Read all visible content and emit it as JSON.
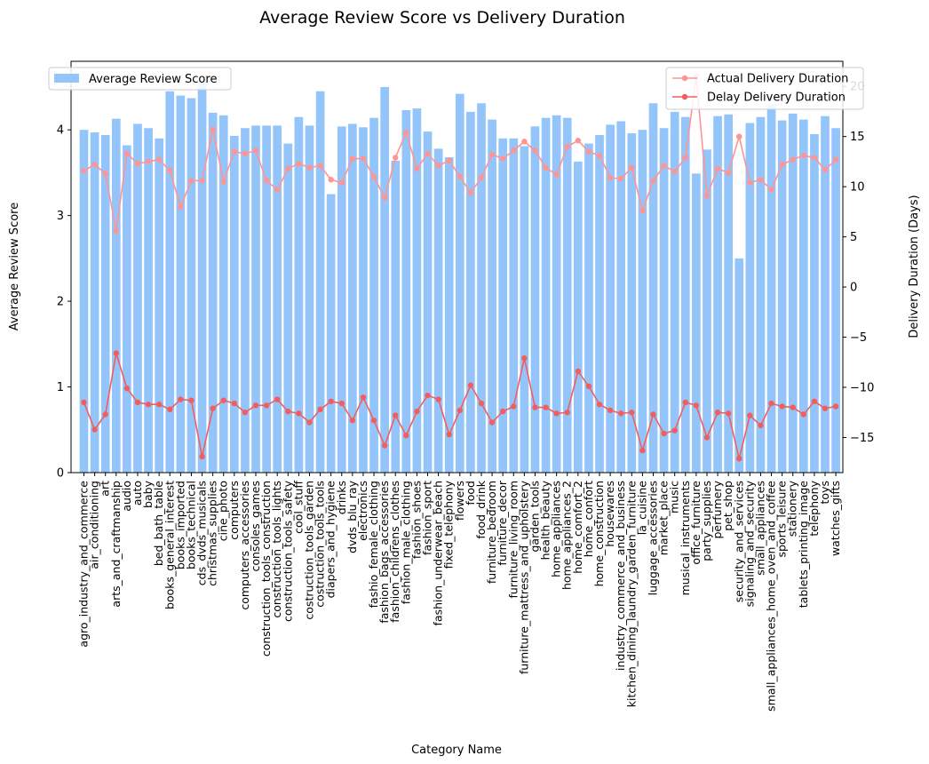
{
  "chart_data": {
    "type": "bar+line",
    "title": "Average Review Score vs Delivery Duration",
    "xlabel": "Category Name",
    "ylabel_left": "Average Review Score",
    "ylabel_right": "Delivery Duration (Days)",
    "ylim_left": [
      0,
      4.8
    ],
    "ylim_right": [
      -18.5,
      22.5
    ],
    "yticks_left": [
      0,
      1,
      2,
      3,
      4
    ],
    "yticks_right": [
      -15,
      -10,
      -5,
      0,
      5,
      10,
      15,
      20
    ],
    "grid": false,
    "legend_left": "top-left",
    "legend_right": "top-right",
    "colors": {
      "bar": "#93c5fa",
      "actual_line": "#ff9494",
      "delay_line": "#f25e5e"
    },
    "categories": [
      "agro_industry_and_commerce",
      "air_conditioning",
      "art",
      "arts_and_craftmanship",
      "audio",
      "auto",
      "baby",
      "bed_bath_table",
      "books_general_interest",
      "books_imported",
      "books_technical",
      "cds_dvds_musicals",
      "christmas_supplies",
      "cine_photo",
      "computers",
      "computers_accessories",
      "consoles_games",
      "construction_tools_construction",
      "construction_tools_lights",
      "construction_tools_safety",
      "cool_stuff",
      "costruction_tools_garden",
      "costruction_tools_tools",
      "diapers_and_hygiene",
      "drinks",
      "dvds_blu_ray",
      "electronics",
      "fashio_female_clothing",
      "fashion_bags_accessories",
      "fashion_childrens_clothes",
      "fashion_male_clothing",
      "fashion_shoes",
      "fashion_sport",
      "fashion_underwear_beach",
      "fixed_telephony",
      "flowers",
      "food",
      "food_drink",
      "furniture_bedroom",
      "furniture_decor",
      "furniture_living_room",
      "furniture_mattress_and_upholstery",
      "garden_tools",
      "health_beauty",
      "home_appliances",
      "home_appliances_2",
      "home_comfort_2",
      "home_confort",
      "home_construction",
      "housewares",
      "industry_commerce_and_business",
      "kitchen_dining_laundry_garden_furniture",
      "la_cuisine",
      "luggage_accessories",
      "market_place",
      "music",
      "musical_instruments",
      "office_furniture",
      "party_supplies",
      "perfumery",
      "pet_shop",
      "security_and_services",
      "signaling_and_security",
      "small_appliances",
      "small_appliances_home_oven_and_coffee",
      "sports_leisure",
      "stationery",
      "tablets_printing_image",
      "telephony",
      "toys",
      "watches_gifts"
    ],
    "series": [
      {
        "name": "Average Review Score",
        "axis": "left",
        "kind": "bar",
        "values": [
          4.0,
          3.97,
          3.94,
          4.13,
          3.82,
          4.07,
          4.02,
          3.9,
          4.45,
          4.4,
          4.37,
          4.57,
          4.2,
          4.17,
          3.93,
          4.02,
          4.05,
          4.05,
          4.05,
          3.84,
          4.15,
          4.05,
          4.45,
          3.25,
          4.04,
          4.07,
          4.03,
          4.14,
          4.5,
          3.64,
          4.23,
          4.25,
          3.98,
          3.78,
          3.68,
          4.42,
          4.21,
          4.31,
          4.12,
          3.9,
          3.9,
          3.81,
          4.04,
          4.14,
          4.17,
          4.14,
          3.63,
          3.84,
          3.94,
          4.06,
          4.1,
          3.96,
          4.0,
          4.31,
          4.02,
          4.21,
          4.15,
          3.49,
          3.77,
          4.16,
          4.18,
          2.5,
          4.08,
          4.15,
          4.3,
          4.11,
          4.19,
          4.12,
          3.95,
          4.16,
          4.02
        ]
      },
      {
        "name": "Actual Delivery Duration",
        "axis": "right",
        "kind": "line",
        "values": [
          11.6,
          12.2,
          11.3,
          5.6,
          13.3,
          12.3,
          12.5,
          12.7,
          11.6,
          8.0,
          10.6,
          10.6,
          15.7,
          10.5,
          13.5,
          13.3,
          13.6,
          10.6,
          9.7,
          11.8,
          12.3,
          11.9,
          12.1,
          10.7,
          10.4,
          12.8,
          12.8,
          11.0,
          8.9,
          12.9,
          15.4,
          11.8,
          13.3,
          12.1,
          12.6,
          11.0,
          9.4,
          10.9,
          13.2,
          12.8,
          13.6,
          14.5,
          13.6,
          11.9,
          11.2,
          14.0,
          14.6,
          13.5,
          13.1,
          10.9,
          10.8,
          11.9,
          7.6,
          10.6,
          12.1,
          11.5,
          12.9,
          21.0,
          9.1,
          11.8,
          11.4,
          15.0,
          10.4,
          10.7,
          9.7,
          12.2,
          12.7,
          13.1,
          12.9,
          11.7,
          12.7
        ]
      },
      {
        "name": "Delay Delivery Duration",
        "axis": "right",
        "kind": "line",
        "values": [
          -11.5,
          -14.2,
          -12.7,
          -6.6,
          -10.1,
          -11.5,
          -11.7,
          -11.7,
          -12.2,
          -11.2,
          -11.3,
          -16.9,
          -12.1,
          -11.3,
          -11.6,
          -12.5,
          -11.8,
          -11.8,
          -11.2,
          -12.4,
          -12.6,
          -13.5,
          -12.2,
          -11.4,
          -11.6,
          -13.3,
          -11.0,
          -13.3,
          -15.8,
          -12.8,
          -14.8,
          -12.4,
          -10.8,
          -11.2,
          -14.7,
          -12.3,
          -9.8,
          -11.6,
          -13.5,
          -12.4,
          -11.9,
          -7.1,
          -12.0,
          -12.0,
          -12.6,
          -12.5,
          -8.4,
          -9.9,
          -11.7,
          -12.3,
          -12.6,
          -12.5,
          -16.3,
          -12.7,
          -14.6,
          -14.3,
          -11.5,
          -11.8,
          -15.0,
          -12.5,
          -12.6,
          -17.1,
          -12.8,
          -13.8,
          -11.6,
          -11.9,
          -12.0,
          -12.7,
          -11.4,
          -12.1,
          -11.9
        ]
      }
    ]
  }
}
